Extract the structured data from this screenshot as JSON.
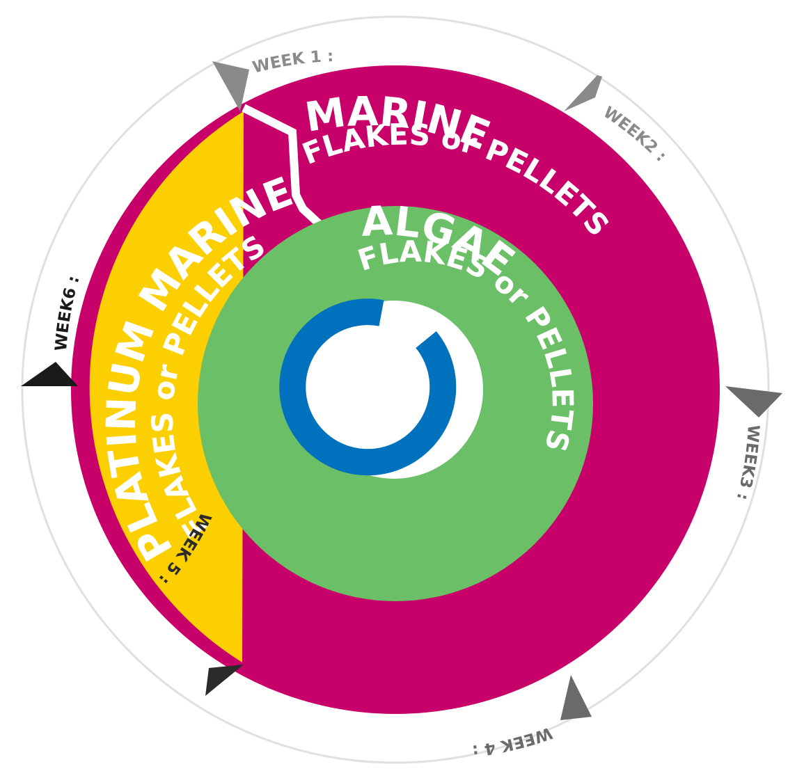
{
  "rings": [
    {
      "title": "MARINE",
      "subtitle": "FLAKES or PELLETS",
      "color": "#c8006a"
    },
    {
      "title": "ALGAE",
      "subtitle": "FLAKES or PELLETS",
      "color": "#6bbf67"
    },
    {
      "title": "PLATINUM MARINE",
      "subtitle": "FLAKES or PELLETS",
      "color": "#fccf00"
    }
  ],
  "center_ring_color": "#0071bc",
  "outer_ring_color": "#e0e0e0",
  "weeks": [
    {
      "label": "WEEK 1 :",
      "color": "#8a8a8a"
    },
    {
      "label": "WEEK2 :",
      "color": "#8a8a8a"
    },
    {
      "label": "WEEK3 :",
      "color": "#6a6a6a"
    },
    {
      "label": "WEEK 4 :",
      "color": "#6a6a6a"
    },
    {
      "label": "WEEK 5 :",
      "color": "#2b2b2b"
    },
    {
      "label": "WEEK6 :",
      "color": "#1a1a1a"
    }
  ]
}
